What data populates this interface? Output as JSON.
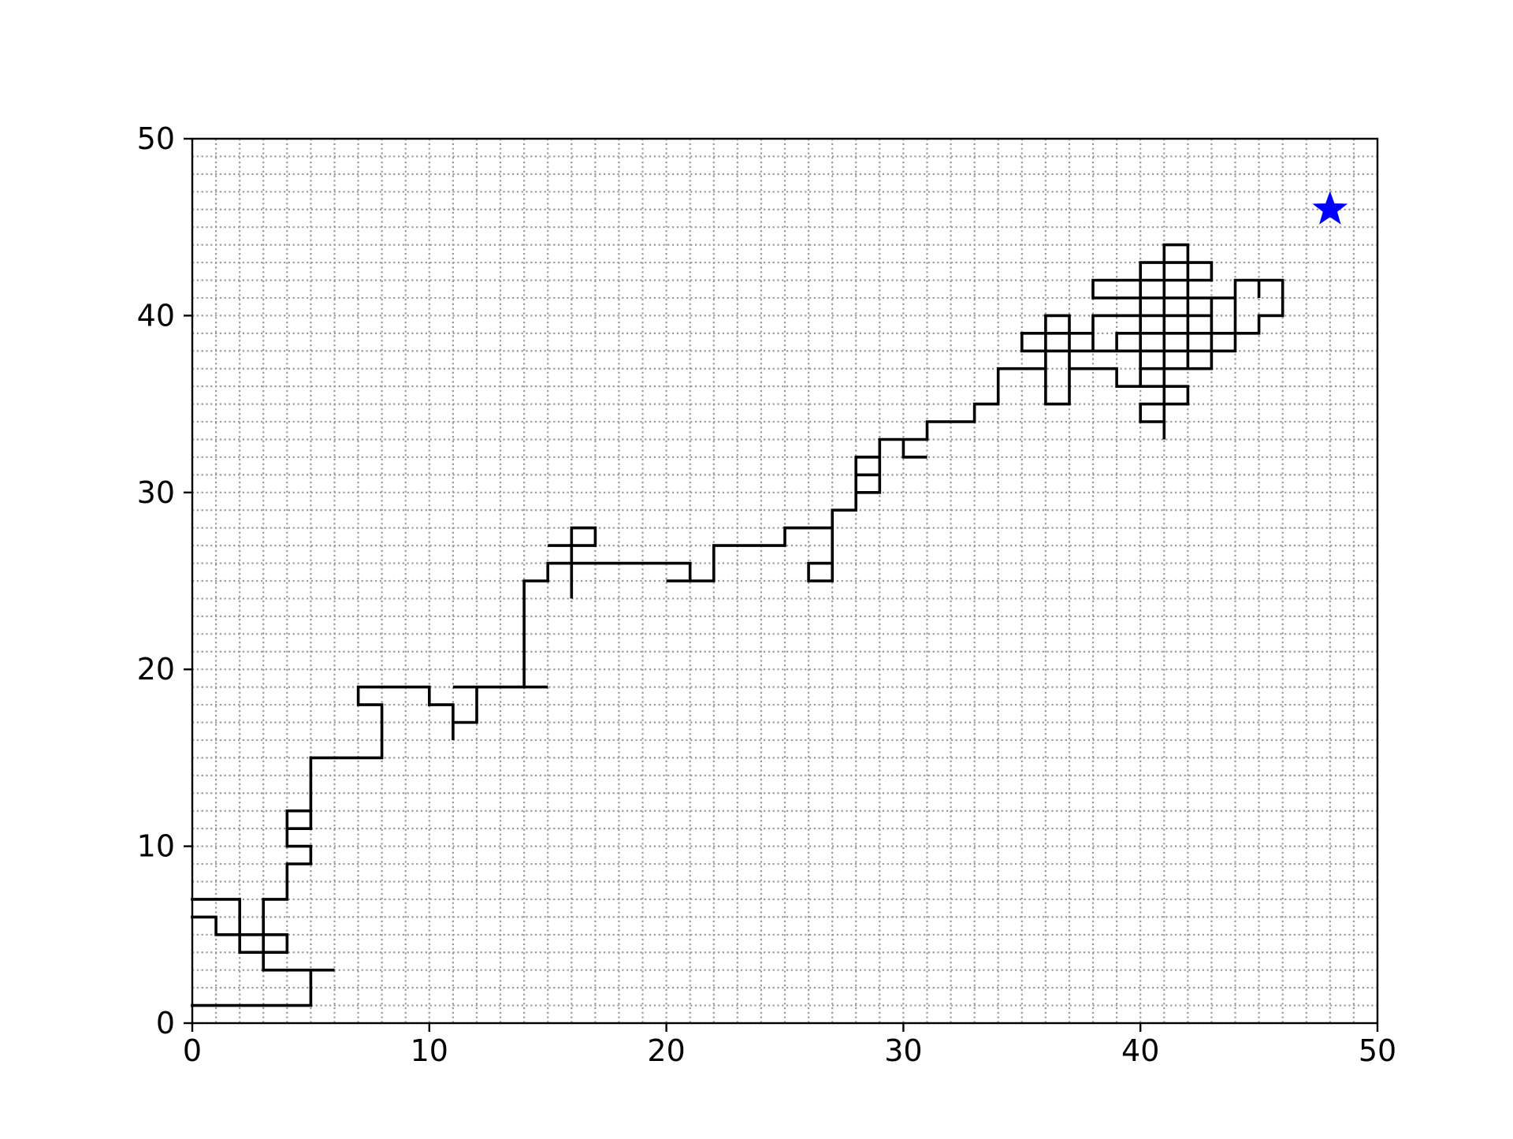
{
  "chart_data": {
    "type": "line",
    "title": "",
    "xlabel": "",
    "ylabel": "",
    "xlim": [
      0,
      50
    ],
    "ylim": [
      0,
      50
    ],
    "xticks": [
      "0",
      "10",
      "20",
      "30",
      "40",
      "50"
    ],
    "yticks": [
      "0",
      "10",
      "20",
      "30",
      "40",
      "50"
    ],
    "grid": true,
    "grid_style": "dotted",
    "colors": {
      "path": "#000000",
      "marker": "#0000ff",
      "grid": "#999999"
    },
    "series": [
      {
        "type": "line",
        "points": [
          [
            0,
            1
          ],
          [
            5,
            1
          ],
          [
            5,
            3
          ],
          [
            6,
            3
          ],
          [
            3,
            3
          ],
          [
            3,
            7
          ],
          [
            4,
            7
          ],
          [
            4,
            9
          ],
          [
            5,
            9
          ],
          [
            5,
            10
          ],
          [
            4,
            10
          ],
          [
            4,
            12
          ],
          [
            5,
            12
          ],
          [
            5,
            11
          ],
          [
            4,
            11
          ],
          [
            4,
            12
          ],
          [
            5,
            12
          ],
          [
            5,
            15
          ],
          [
            8,
            15
          ],
          [
            8,
            18
          ],
          [
            7,
            18
          ],
          [
            7,
            19
          ],
          [
            10,
            19
          ],
          [
            10,
            18
          ],
          [
            11,
            18
          ],
          [
            11,
            16
          ],
          [
            11,
            17
          ],
          [
            12,
            17
          ],
          [
            12,
            19
          ],
          [
            11,
            19
          ],
          [
            15,
            19
          ],
          [
            14,
            19
          ],
          [
            14,
            25
          ],
          [
            15,
            25
          ],
          [
            15,
            26
          ],
          [
            16,
            26
          ],
          [
            16,
            27
          ],
          [
            15,
            27
          ],
          [
            17,
            27
          ],
          [
            17,
            28
          ],
          [
            16,
            28
          ],
          [
            16,
            24
          ],
          [
            16,
            26
          ],
          [
            21,
            26
          ],
          [
            21,
            25
          ],
          [
            20,
            25
          ],
          [
            22,
            25
          ],
          [
            22,
            27
          ],
          [
            25,
            27
          ],
          [
            25,
            28
          ],
          [
            27,
            28
          ],
          [
            27,
            25
          ],
          [
            26,
            25
          ],
          [
            26,
            26
          ],
          [
            27,
            26
          ],
          [
            27,
            29
          ],
          [
            28,
            29
          ],
          [
            28,
            32
          ],
          [
            29,
            32
          ],
          [
            29,
            30
          ],
          [
            28,
            30
          ],
          [
            28,
            31
          ],
          [
            29,
            31
          ],
          [
            29,
            33
          ],
          [
            30,
            33
          ],
          [
            30,
            32
          ],
          [
            31,
            32
          ],
          [
            30,
            32
          ],
          [
            30,
            33
          ],
          [
            31,
            33
          ],
          [
            31,
            34
          ],
          [
            33,
            34
          ],
          [
            33,
            35
          ],
          [
            34,
            35
          ],
          [
            34,
            37
          ],
          [
            36,
            37
          ],
          [
            36,
            40
          ],
          [
            37,
            40
          ],
          [
            37,
            38
          ],
          [
            36,
            38
          ],
          [
            36,
            35
          ],
          [
            37,
            35
          ],
          [
            37,
            38
          ],
          [
            35,
            38
          ],
          [
            35,
            39
          ],
          [
            38,
            39
          ],
          [
            38,
            38
          ],
          [
            38,
            40
          ],
          [
            40,
            40
          ],
          [
            40,
            37
          ],
          [
            41,
            37
          ],
          [
            41,
            33
          ],
          [
            41,
            34
          ],
          [
            40,
            34
          ],
          [
            40,
            35
          ],
          [
            42,
            35
          ],
          [
            42,
            36
          ],
          [
            40,
            36
          ],
          [
            40,
            38
          ],
          [
            39,
            38
          ],
          [
            39,
            39
          ],
          [
            42,
            39
          ],
          [
            42,
            37
          ],
          [
            43,
            37
          ],
          [
            43,
            40
          ],
          [
            40,
            40
          ],
          [
            40,
            43
          ],
          [
            41,
            43
          ],
          [
            41,
            36
          ],
          [
            39,
            36
          ],
          [
            39,
            37
          ],
          [
            37,
            37
          ],
          [
            37,
            38
          ],
          [
            39,
            38
          ],
          [
            39,
            39
          ],
          [
            44,
            39
          ],
          [
            44,
            42
          ],
          [
            46,
            42
          ],
          [
            46,
            40
          ],
          [
            45,
            40
          ],
          [
            45,
            39
          ],
          [
            44,
            39
          ],
          [
            44,
            38
          ],
          [
            42,
            38
          ],
          [
            42,
            44
          ],
          [
            41,
            44
          ],
          [
            41,
            41
          ],
          [
            38,
            41
          ],
          [
            38,
            42
          ],
          [
            40,
            42
          ],
          [
            40,
            43
          ],
          [
            43,
            43
          ],
          [
            43,
            42
          ],
          [
            40,
            42
          ],
          [
            40,
            41
          ],
          [
            44,
            41
          ],
          [
            44,
            38
          ],
          [
            43,
            38
          ],
          [
            43,
            41
          ],
          [
            41,
            41
          ],
          [
            41,
            38
          ],
          [
            42,
            38
          ],
          [
            42,
            37
          ],
          [
            41,
            37
          ],
          [
            41,
            38
          ],
          [
            40,
            38
          ],
          [
            40,
            41
          ],
          [
            44,
            41
          ],
          [
            44,
            42
          ],
          [
            45,
            42
          ],
          [
            45,
            41
          ],
          [
            45,
            42
          ]
        ]
      },
      {
        "type": "line",
        "points": [
          [
            0,
            7
          ],
          [
            2,
            7
          ],
          [
            2,
            4
          ],
          [
            4,
            4
          ],
          [
            4,
            5
          ],
          [
            3,
            5
          ],
          [
            1,
            5
          ],
          [
            1,
            6
          ],
          [
            0,
            6
          ]
        ]
      },
      {
        "type": "scatter",
        "marker": "star",
        "points": [
          [
            48,
            46
          ]
        ]
      }
    ]
  }
}
